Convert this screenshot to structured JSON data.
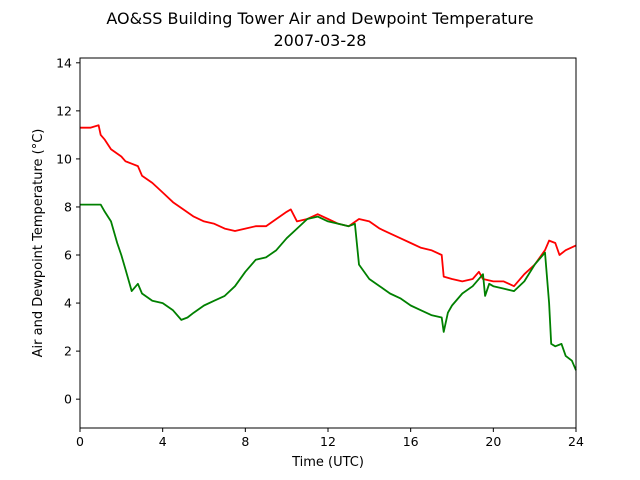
{
  "chart_data": {
    "type": "line",
    "title": [
      "AO&SS Building Tower Air and Dewpoint Temperature",
      "2007-03-28"
    ],
    "xlabel": "Time (UTC)",
    "ylabel": "Air and Dewpoint Temperature (°C)",
    "xlim": [
      0,
      24
    ],
    "ylim": [
      -1.2,
      14.2
    ],
    "xticks": [
      0,
      4,
      8,
      12,
      16,
      20,
      24
    ],
    "yticks": [
      0,
      2,
      4,
      6,
      8,
      10,
      12,
      14
    ],
    "grid": false,
    "series": [
      {
        "color": "#ff0000",
        "x": [
          0,
          0.5,
          0.9,
          1.0,
          1.2,
          1.5,
          2.0,
          2.2,
          2.5,
          2.8,
          3.0,
          3.5,
          4.0,
          4.5,
          5.0,
          5.5,
          6.0,
          6.5,
          7.0,
          7.5,
          8.0,
          8.5,
          9.0,
          9.5,
          10.0,
          10.2,
          10.5,
          11.0,
          11.5,
          12.0,
          12.5,
          13.0,
          13.5,
          14.0,
          14.5,
          15.0,
          15.5,
          16.0,
          16.5,
          17.0,
          17.5,
          17.6,
          18.0,
          18.5,
          19.0,
          19.3,
          19.5,
          20.0,
          20.5,
          21.0,
          21.5,
          22.0,
          22.5,
          22.7,
          23.0,
          23.2,
          23.5,
          24.0
        ],
        "y": [
          11.3,
          11.3,
          11.4,
          11.0,
          10.8,
          10.4,
          10.1,
          9.9,
          9.8,
          9.7,
          9.3,
          9.0,
          8.6,
          8.2,
          7.9,
          7.6,
          7.4,
          7.3,
          7.1,
          7.0,
          7.1,
          7.2,
          7.2,
          7.5,
          7.8,
          7.9,
          7.4,
          7.5,
          7.7,
          7.5,
          7.3,
          7.2,
          7.5,
          7.4,
          7.1,
          6.9,
          6.7,
          6.5,
          6.3,
          6.2,
          6.0,
          5.1,
          5.0,
          4.9,
          5.0,
          5.3,
          5.0,
          4.9,
          4.9,
          4.7,
          5.2,
          5.6,
          6.2,
          6.6,
          6.5,
          6.0,
          6.2,
          6.4
        ]
      },
      {
        "color": "#008000",
        "x": [
          0,
          0.5,
          1.0,
          1.2,
          1.5,
          1.8,
          2.0,
          2.2,
          2.5,
          2.8,
          3.0,
          3.5,
          4.0,
          4.5,
          4.9,
          5.2,
          5.5,
          6.0,
          6.5,
          7.0,
          7.5,
          8.0,
          8.5,
          9.0,
          9.5,
          10.0,
          10.5,
          11.0,
          11.5,
          12.0,
          12.5,
          13.0,
          13.3,
          13.5,
          14.0,
          14.5,
          15.0,
          15.5,
          16.0,
          16.5,
          17.0,
          17.5,
          17.6,
          17.8,
          18.0,
          18.5,
          19.0,
          19.5,
          19.6,
          19.8,
          20.0,
          20.5,
          21.0,
          21.5,
          22.0,
          22.5,
          22.7,
          22.8,
          23.0,
          23.3,
          23.5,
          23.8,
          24.0
        ],
        "y": [
          8.1,
          8.1,
          8.1,
          7.8,
          7.4,
          6.5,
          6.0,
          5.4,
          4.5,
          4.8,
          4.4,
          4.1,
          4.0,
          3.7,
          3.3,
          3.4,
          3.6,
          3.9,
          4.1,
          4.3,
          4.7,
          5.3,
          5.8,
          5.9,
          6.2,
          6.7,
          7.1,
          7.5,
          7.6,
          7.4,
          7.3,
          7.2,
          7.3,
          5.6,
          5.0,
          4.7,
          4.4,
          4.2,
          3.9,
          3.7,
          3.5,
          3.4,
          2.8,
          3.6,
          3.9,
          4.4,
          4.7,
          5.2,
          4.3,
          4.8,
          4.7,
          4.6,
          4.5,
          4.9,
          5.6,
          6.1,
          4.0,
          2.3,
          2.2,
          2.3,
          1.8,
          1.6,
          1.2
        ]
      }
    ]
  }
}
